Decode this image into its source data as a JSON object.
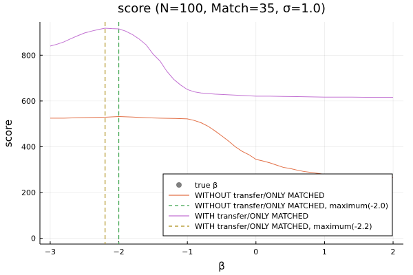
{
  "chart_data": {
    "type": "line",
    "title": "score (N=100, Match=35, σ=1.0)",
    "xlabel": "β",
    "ylabel": "score",
    "xlim": [
      -3.15,
      2.15
    ],
    "ylim": [
      -25,
      945
    ],
    "x_ticks": [
      -3,
      -2,
      -1,
      0,
      1,
      2
    ],
    "x_tick_labels": [
      "−3",
      "−2",
      "−1",
      "0",
      "1",
      "2"
    ],
    "y_ticks": [
      0,
      200,
      400,
      600,
      800
    ],
    "y_tick_labels": [
      "0",
      "200",
      "400",
      "600",
      "800"
    ],
    "grid": true,
    "legend_position": "bottom-right",
    "series": [
      {
        "name": "true β",
        "kind": "scatter",
        "color": "#808080",
        "x": [],
        "y": []
      },
      {
        "name": "WITHOUT transfer/ONLY MATCHED",
        "kind": "line",
        "color": "#e26f46",
        "x": [
          -3.0,
          -2.8,
          -2.6,
          -2.4,
          -2.2,
          -2.0,
          -1.8,
          -1.6,
          -1.4,
          -1.2,
          -1.0,
          -0.9,
          -0.8,
          -0.7,
          -0.6,
          -0.5,
          -0.4,
          -0.3,
          -0.2,
          -0.1,
          0.0,
          0.1,
          0.2,
          0.3,
          0.4,
          0.5,
          0.6,
          0.7,
          0.8,
          0.9,
          1.0,
          1.1,
          1.2,
          1.3,
          1.4,
          1.5,
          1.6,
          1.7,
          1.8,
          1.9,
          2.0
        ],
        "y": [
          525,
          525,
          527,
          528,
          529,
          532,
          530,
          527,
          525,
          524,
          522,
          515,
          505,
          490,
          470,
          448,
          425,
          400,
          380,
          365,
          345,
          338,
          330,
          320,
          310,
          305,
          298,
          292,
          288,
          284,
          280,
          276,
          274,
          272,
          270,
          268,
          268,
          267,
          266,
          266,
          266
        ]
      },
      {
        "name": "WITHOUT transfer/ONLY MATCHED, maximum(-2.0)",
        "kind": "vline",
        "color": "#3da44d",
        "x": -2.0
      },
      {
        "name": "WITH transfer/ONLY MATCHED",
        "kind": "line",
        "color": "#c271d2",
        "x": [
          -3.0,
          -2.9,
          -2.8,
          -2.7,
          -2.6,
          -2.5,
          -2.4,
          -2.3,
          -2.2,
          -2.1,
          -2.0,
          -1.9,
          -1.8,
          -1.7,
          -1.6,
          -1.5,
          -1.4,
          -1.3,
          -1.2,
          -1.1,
          -1.0,
          -0.9,
          -0.8,
          -0.6,
          -0.4,
          -0.2,
          0.0,
          0.2,
          0.4,
          0.6,
          0.8,
          1.0,
          1.2,
          1.4,
          1.6,
          1.8,
          2.0
        ],
        "y": [
          840,
          848,
          858,
          872,
          885,
          897,
          905,
          912,
          918,
          916,
          915,
          905,
          890,
          870,
          845,
          805,
          775,
          730,
          695,
          670,
          650,
          640,
          635,
          630,
          627,
          624,
          621,
          621,
          620,
          619,
          618,
          617,
          617,
          617,
          616,
          616,
          616
        ]
      },
      {
        "name": "WITH transfer/ONLY MATCHED, maximum(-2.2)",
        "kind": "vline",
        "color": "#ac8d18",
        "x": -2.2
      }
    ]
  }
}
